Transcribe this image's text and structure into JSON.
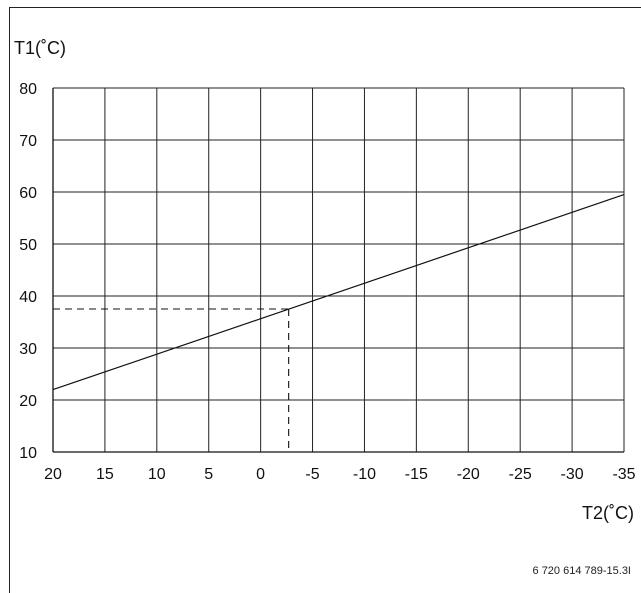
{
  "chart_data": {
    "type": "line",
    "ylabel": "T1(˚C)",
    "xlabel": "T2(˚C)",
    "x_ticks": [
      "20",
      "15",
      "10",
      "5",
      "0",
      "-5",
      "-10",
      "-15",
      "-20",
      "-25",
      "-30",
      "-35"
    ],
    "y_ticks": [
      "80",
      "70",
      "60",
      "50",
      "40",
      "30",
      "20",
      "10"
    ],
    "xlim": [
      20,
      -35
    ],
    "ylim": [
      10,
      80
    ],
    "grid": true,
    "series": [
      {
        "x": [
          20,
          -35
        ],
        "y": [
          22,
          59.5
        ]
      }
    ],
    "reference_point": {
      "x": -2.7,
      "y": 37.5
    }
  },
  "figure_code": "6 720 614 789-15.3I"
}
